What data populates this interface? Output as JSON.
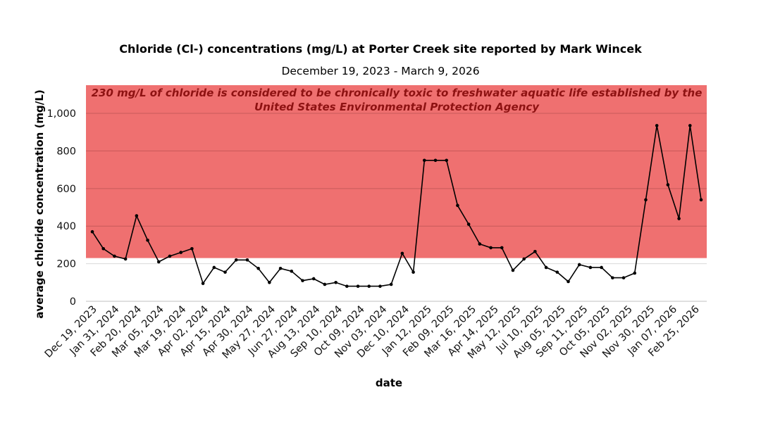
{
  "chart_data": {
    "type": "line",
    "title": "Chloride (Cl-) concentrations (mg/L) at Porter Creek site reported by Mark Wincek",
    "subtitle": "December 19, 2023 - March 9, 2026",
    "xlabel": "date",
    "ylabel": "average chloride concentration (mg/L)",
    "ylim": [
      0,
      1150
    ],
    "yticks": [
      0,
      200,
      400,
      600,
      800,
      1000
    ],
    "ytick_labels": [
      "0",
      "200",
      "400",
      "600",
      "800",
      "1,000"
    ],
    "grid": "horizontal",
    "x_tick_labels": [
      "Dec 19, 2023",
      "Jan 31, 2024",
      "Feb 20, 2024",
      "Mar 05, 2024",
      "Mar 19, 2024",
      "Apr 02, 2024",
      "Apr 15, 2024",
      "Apr 30, 2024",
      "May 27, 2024",
      "Jun 27, 2024",
      "Aug 13, 2024",
      "Sep 10, 2024",
      "Oct 09, 2024",
      "Nov 03, 2024",
      "Dec 10, 2024",
      "Jan 12, 2025",
      "Feb 09, 2025",
      "Mar 16, 2025",
      "Apr 14, 2025",
      "May 12, 2025",
      "Jul 10, 2025",
      "Aug 05, 2025",
      "Sep 11, 2025",
      "Oct 05, 2025",
      "Nov 02, 2025",
      "Nov 30, 2025",
      "Jan 07, 2026",
      "Feb 25, 2026"
    ],
    "threshold": {
      "value": 230,
      "color": "#ef7070",
      "label_line1": "230 mg/L of chloride is considered to be chronically toxic to freshwater aquatic life established by the",
      "label_line2": "United States Environmental Protection Agency"
    },
    "series": [
      {
        "color": "#000000",
        "values": [
          370,
          280,
          240,
          225,
          455,
          325,
          210,
          240,
          260,
          280,
          95,
          180,
          155,
          220,
          220,
          175,
          100,
          175,
          160,
          110,
          120,
          90,
          100,
          80,
          80,
          80,
          80,
          90,
          255,
          155,
          750,
          750,
          750,
          510,
          410,
          305,
          285,
          285,
          165,
          225,
          265,
          180,
          155,
          105,
          195,
          180,
          180,
          125,
          125,
          150,
          540,
          935,
          620,
          440,
          935,
          540
        ]
      }
    ]
  }
}
